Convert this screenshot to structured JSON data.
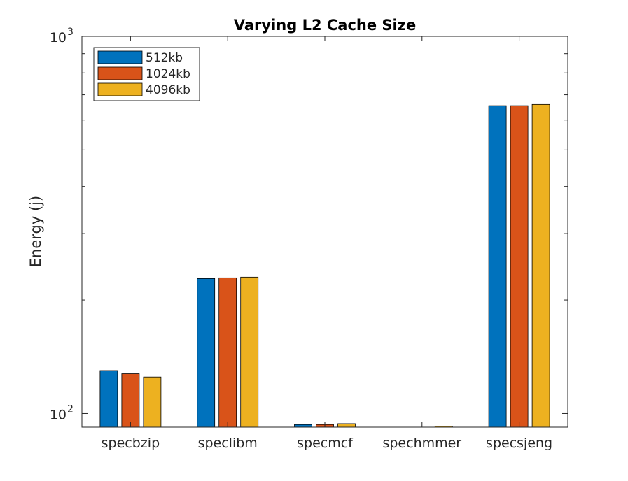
{
  "chart_data": {
    "type": "bar",
    "title": "Varying L2 Cache Size",
    "xlabel": "",
    "ylabel": "Energy (j)",
    "yscale": "log",
    "ylim": [
      92,
      1000
    ],
    "ytick_labels": [
      {
        "value": 100,
        "base": "10",
        "exp": "2"
      },
      {
        "value": 1000,
        "base": "10",
        "exp": "3"
      }
    ],
    "categories": [
      "specbzip",
      "speclibm",
      "specmcf",
      "spechmmer",
      "specsjeng"
    ],
    "series": [
      {
        "name": "512kb",
        "color": "#0072BD",
        "values": [
          130,
          228,
          93.5,
          91.5,
          655
        ]
      },
      {
        "name": "1024kb",
        "color": "#D95319",
        "values": [
          127.5,
          229,
          93.5,
          91.5,
          655
        ]
      },
      {
        "name": "4096kb",
        "color": "#EDB120",
        "values": [
          125,
          230,
          94,
          92.5,
          660
        ]
      }
    ],
    "legend": "top-left",
    "grid": false
  }
}
